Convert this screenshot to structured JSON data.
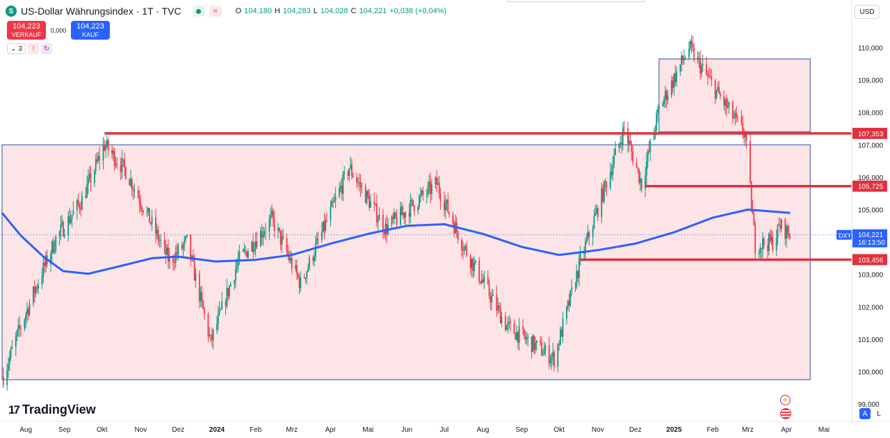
{
  "header": {
    "symbol_icon": "S",
    "title": "US-Dollar Währungsindex · 1T · TVC",
    "ohlc": [
      {
        "k": "O",
        "v": "104,180"
      },
      {
        "k": "H",
        "v": "104,283"
      },
      {
        "k": "L",
        "v": "104,028"
      },
      {
        "k": "C",
        "v": "104,221"
      },
      {
        "k": "",
        "v": "+0,038 (+0,04%)"
      }
    ]
  },
  "trade": {
    "sell_price": "104,223",
    "sell_label": "VERKAUF",
    "spread": "0,000",
    "buy_price": "104,223",
    "buy_label": "KAUF"
  },
  "indicators": {
    "count": "3"
  },
  "currency": "USD",
  "brand": "TradingView",
  "scale_buttons": {
    "auto": "A",
    "log": "L"
  },
  "colors": {
    "up": "#089981",
    "down": "#f23645",
    "ma": "#2962ff",
    "level_line": "#e0303f",
    "zone_fill": "#fde4e6",
    "zone_border": "#2a4fa0"
  },
  "chart_data": {
    "type": "candlestick",
    "symbol": "DXY",
    "x_tick_labels": [
      "Aug",
      "Sep",
      "Okt",
      "Nov",
      "Dez",
      "2024",
      "Feb",
      "Mrz",
      "Apr",
      "Mai",
      "Jun",
      "Jul",
      "Aug",
      "Sep",
      "Okt",
      "Nov",
      "Dez",
      "2025",
      "Feb",
      "Mrz",
      "Apr",
      "Mai"
    ],
    "y_tick_labels": [
      "99,000",
      "100,000",
      "101,000",
      "102,000",
      "103,000",
      "104,000",
      "105,000",
      "106,000",
      "107,000",
      "108,000",
      "109,000",
      "110,000"
    ],
    "ylim": [
      98.9,
      111.2
    ],
    "current_price": {
      "label": "DXY",
      "value": "104,221",
      "countdown": "16:13:50",
      "v": 104.221
    },
    "horizontal_levels": [
      {
        "label": "107,353",
        "v": 107.353
      },
      {
        "label": "105,725",
        "v": 105.725
      },
      {
        "label": "103,456",
        "v": 103.456
      }
    ],
    "zones": [
      {
        "name": "big-range",
        "from_date": "2023-07-13",
        "to_date": "2025-04-20",
        "low": 99.75,
        "high": 107.0
      },
      {
        "name": "top-range",
        "from_date": "2024-12-20",
        "to_date": "2025-04-20",
        "low": 107.4,
        "high": 109.65
      }
    ],
    "ma_series": [
      {
        "date": "2023-07-13",
        "v": 104.9
      },
      {
        "date": "2023-07-28",
        "v": 104.2
      },
      {
        "date": "2023-08-15",
        "v": 103.55
      },
      {
        "date": "2023-08-31",
        "v": 103.1
      },
      {
        "date": "2023-09-20",
        "v": 103.02
      },
      {
        "date": "2023-10-15",
        "v": 103.25
      },
      {
        "date": "2023-11-10",
        "v": 103.5
      },
      {
        "date": "2023-12-01",
        "v": 103.55
      },
      {
        "date": "2023-12-31",
        "v": 103.4
      },
      {
        "date": "2024-02-01",
        "v": 103.45
      },
      {
        "date": "2024-03-01",
        "v": 103.6
      },
      {
        "date": "2024-04-01",
        "v": 103.95
      },
      {
        "date": "2024-05-01",
        "v": 104.25
      },
      {
        "date": "2024-06-01",
        "v": 104.5
      },
      {
        "date": "2024-07-01",
        "v": 104.55
      },
      {
        "date": "2024-08-01",
        "v": 104.25
      },
      {
        "date": "2024-09-01",
        "v": 103.85
      },
      {
        "date": "2024-10-01",
        "v": 103.6
      },
      {
        "date": "2024-11-01",
        "v": 103.75
      },
      {
        "date": "2024-12-01",
        "v": 103.95
      },
      {
        "date": "2025-01-01",
        "v": 104.3
      },
      {
        "date": "2025-02-01",
        "v": 104.75
      },
      {
        "date": "2025-03-01",
        "v": 105.0
      },
      {
        "date": "2025-04-04",
        "v": 104.9
      }
    ],
    "close_path": [
      {
        "date": "2023-07-14",
        "v": 99.85
      },
      {
        "date": "2023-07-25",
        "v": 101.1
      },
      {
        "date": "2023-08-08",
        "v": 102.5
      },
      {
        "date": "2023-08-25",
        "v": 104.1
      },
      {
        "date": "2023-09-15",
        "v": 105.3
      },
      {
        "date": "2023-10-03",
        "v": 107.0
      },
      {
        "date": "2023-10-20",
        "v": 106.2
      },
      {
        "date": "2023-11-03",
        "v": 105.1
      },
      {
        "date": "2023-11-24",
        "v": 103.4
      },
      {
        "date": "2023-12-08",
        "v": 104.0
      },
      {
        "date": "2023-12-27",
        "v": 100.9
      },
      {
        "date": "2024-01-18",
        "v": 103.4
      },
      {
        "date": "2024-02-14",
        "v": 104.7
      },
      {
        "date": "2024-03-08",
        "v": 102.7
      },
      {
        "date": "2024-04-16",
        "v": 106.3
      },
      {
        "date": "2024-05-15",
        "v": 104.4
      },
      {
        "date": "2024-06-25",
        "v": 105.8
      },
      {
        "date": "2024-07-16",
        "v": 103.9
      },
      {
        "date": "2024-08-20",
        "v": 101.4
      },
      {
        "date": "2024-09-27",
        "v": 100.4
      },
      {
        "date": "2024-10-18",
        "v": 103.4
      },
      {
        "date": "2024-11-22",
        "v": 107.5
      },
      {
        "date": "2024-12-06",
        "v": 105.8
      },
      {
        "date": "2024-12-20",
        "v": 108.1
      },
      {
        "date": "2025-01-13",
        "v": 110.0
      },
      {
        "date": "2025-02-03",
        "v": 108.7
      },
      {
        "date": "2025-02-27",
        "v": 107.3
      },
      {
        "date": "2025-03-07",
        "v": 103.9
      },
      {
        "date": "2025-03-21",
        "v": 104.0
      },
      {
        "date": "2025-03-27",
        "v": 104.5
      },
      {
        "date": "2025-04-04",
        "v": 104.22
      }
    ]
  }
}
